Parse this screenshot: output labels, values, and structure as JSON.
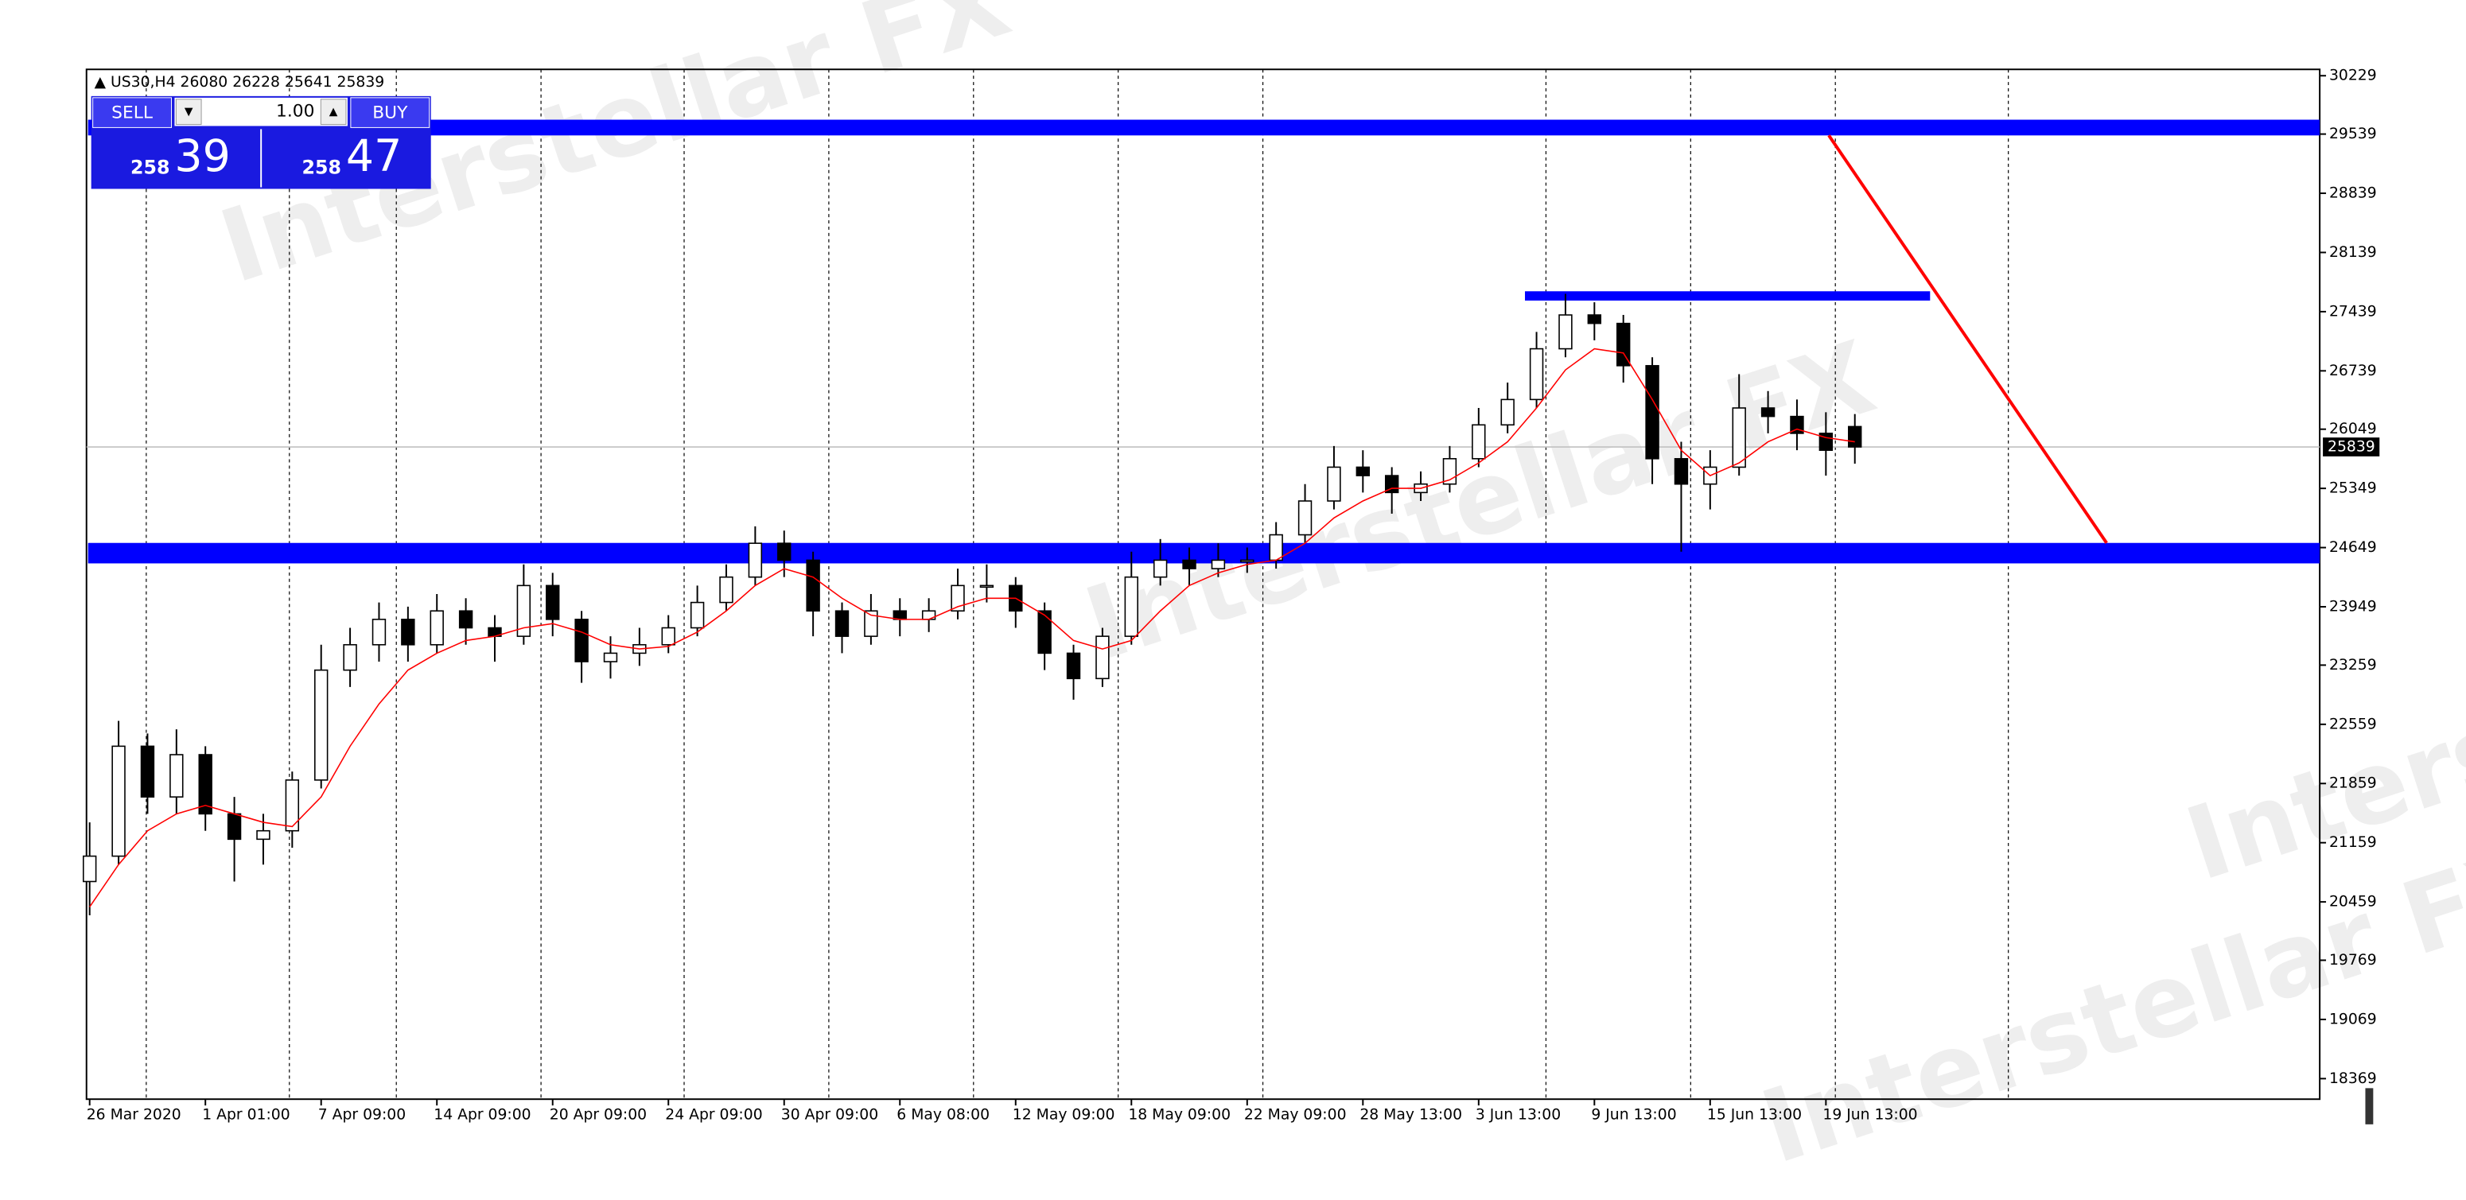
{
  "chart_data": {
    "type": "candlestick",
    "symbol": "US30,H4",
    "watermark": "Interstellar FX",
    "categories": [
      "26 Mar 2020",
      null,
      null,
      null,
      "1 Apr 01:00",
      null,
      null,
      null,
      "7 Apr 09:00",
      null,
      null,
      null,
      "14 Apr 09:00",
      null,
      null,
      null,
      "20 Apr 09:00",
      null,
      null,
      null,
      "24 Apr 09:00",
      null,
      null,
      null,
      "30 Apr 09:00",
      null,
      null,
      null,
      "6 May 08:00",
      null,
      null,
      null,
      "12 May 09:00",
      null,
      null,
      null,
      "18 May 09:00",
      null,
      null,
      null,
      "22 May 09:00",
      null,
      null,
      null,
      "28 May 13:00",
      null,
      null,
      null,
      "3 Jun 13:00",
      null,
      null,
      null,
      "9 Jun 13:00",
      null,
      null,
      null,
      "15 Jun 13:00",
      null,
      null,
      null,
      "19 Jun 13:00",
      null
    ],
    "open": [
      20700,
      21000,
      22300,
      21700,
      22200,
      21500,
      21200,
      21300,
      21900,
      23200,
      23500,
      23800,
      23500,
      23900,
      23700,
      23600,
      24200,
      23800,
      23300,
      23400,
      23500,
      23700,
      24000,
      24300,
      24700,
      24500,
      23900,
      23600,
      23900,
      23800,
      23900,
      24200,
      24200,
      23900,
      23400,
      23100,
      23600,
      24300,
      24500,
      24400,
      24500,
      24500,
      24800,
      25200,
      25600,
      25500,
      25300,
      25400,
      25700,
      26100,
      26400,
      27000,
      27400,
      27300,
      26800,
      25700,
      25400,
      25600,
      26300,
      26200,
      26000,
      26080
    ],
    "high": [
      21400,
      22600,
      22450,
      22500,
      22300,
      21700,
      21500,
      22000,
      23500,
      23700,
      24000,
      23950,
      24100,
      24050,
      23850,
      24450,
      24350,
      23900,
      23600,
      23700,
      23850,
      24200,
      24450,
      24900,
      24850,
      24600,
      24000,
      24100,
      24050,
      24050,
      24400,
      24450,
      24300,
      24000,
      23500,
      23700,
      24600,
      24750,
      24650,
      24700,
      24650,
      24950,
      25400,
      25850,
      25800,
      25600,
      25550,
      25850,
      26300,
      26600,
      27200,
      27650,
      27550,
      27400,
      26900,
      25900,
      25800,
      26700,
      26500,
      26400,
      26250,
      26228
    ],
    "low": [
      20300,
      20900,
      21500,
      21500,
      21300,
      20700,
      20900,
      21100,
      21800,
      23000,
      23300,
      23300,
      23400,
      23500,
      23300,
      23500,
      23600,
      23050,
      23100,
      23250,
      23400,
      23600,
      23900,
      24200,
      24300,
      23600,
      23400,
      23500,
      23600,
      23650,
      23800,
      24000,
      23700,
      23200,
      22850,
      23000,
      23500,
      24200,
      24200,
      24300,
      24350,
      24400,
      24700,
      25100,
      25300,
      25050,
      25200,
      25300,
      25600,
      26000,
      26300,
      26900,
      27100,
      26600,
      25400,
      24600,
      25100,
      25500,
      26000,
      25800,
      25500,
      25641
    ],
    "close": [
      21000,
      22300,
      21700,
      22200,
      21500,
      21200,
      21300,
      21900,
      23200,
      23500,
      23800,
      23500,
      23900,
      23700,
      23600,
      24200,
      23800,
      23300,
      23400,
      23500,
      23700,
      24000,
      24300,
      24700,
      24500,
      23900,
      23600,
      23900,
      23800,
      23900,
      24200,
      24200,
      23900,
      23400,
      23100,
      23600,
      24300,
      24500,
      24400,
      24500,
      24500,
      24800,
      25200,
      25600,
      25500,
      25300,
      25400,
      25700,
      26100,
      26400,
      27000,
      27400,
      27300,
      26800,
      25700,
      25400,
      25600,
      26300,
      26200,
      26000,
      25800,
      25839
    ],
    "overlay": {
      "color": "#ff0000",
      "values": [
        20400,
        20900,
        21300,
        21500,
        21600,
        21500,
        21400,
        21350,
        21700,
        22300,
        22800,
        23200,
        23400,
        23550,
        23600,
        23700,
        23750,
        23650,
        23500,
        23450,
        23480,
        23650,
        23900,
        24200,
        24400,
        24300,
        24050,
        23850,
        23800,
        23800,
        23950,
        24050,
        24050,
        23850,
        23550,
        23450,
        23550,
        23900,
        24200,
        24350,
        24450,
        24500,
        24700,
        25000,
        25200,
        25350,
        25350,
        25450,
        25650,
        25900,
        26300,
        26750,
        27000,
        26950,
        26400,
        25800,
        25500,
        25650,
        25900,
        26050,
        25950,
        25900
      ]
    },
    "zones": [
      {
        "ylim": [
          29523,
          29709
        ],
        "color": "#0000ff"
      },
      {
        "ylim": [
          24462,
          24704
        ],
        "color": "#0000ff"
      },
      {
        "ylim": [
          27570,
          27680
        ],
        "xlim": [
          49.6,
          63.6
        ],
        "color": "#0000ff"
      }
    ],
    "trendline": {
      "x": [
        60.1,
        69.7
      ],
      "y": [
        29523,
        24704
      ],
      "color": "#ff0000"
    },
    "ylim": [
      18126,
      30304
    ],
    "yticks": [
      18369,
      19069,
      19769,
      20459,
      21159,
      21859,
      22559,
      23259,
      23949,
      24649,
      25349,
      26049,
      26739,
      27439,
      28139,
      28839,
      29539,
      30229
    ],
    "trade_panel": {
      "sell": "SELL",
      "lot": "1.00",
      "buy": "BUY",
      "bid_big": "258",
      "bid_small": "39",
      "ask_big": "258",
      "ask_small": "47"
    }
  }
}
